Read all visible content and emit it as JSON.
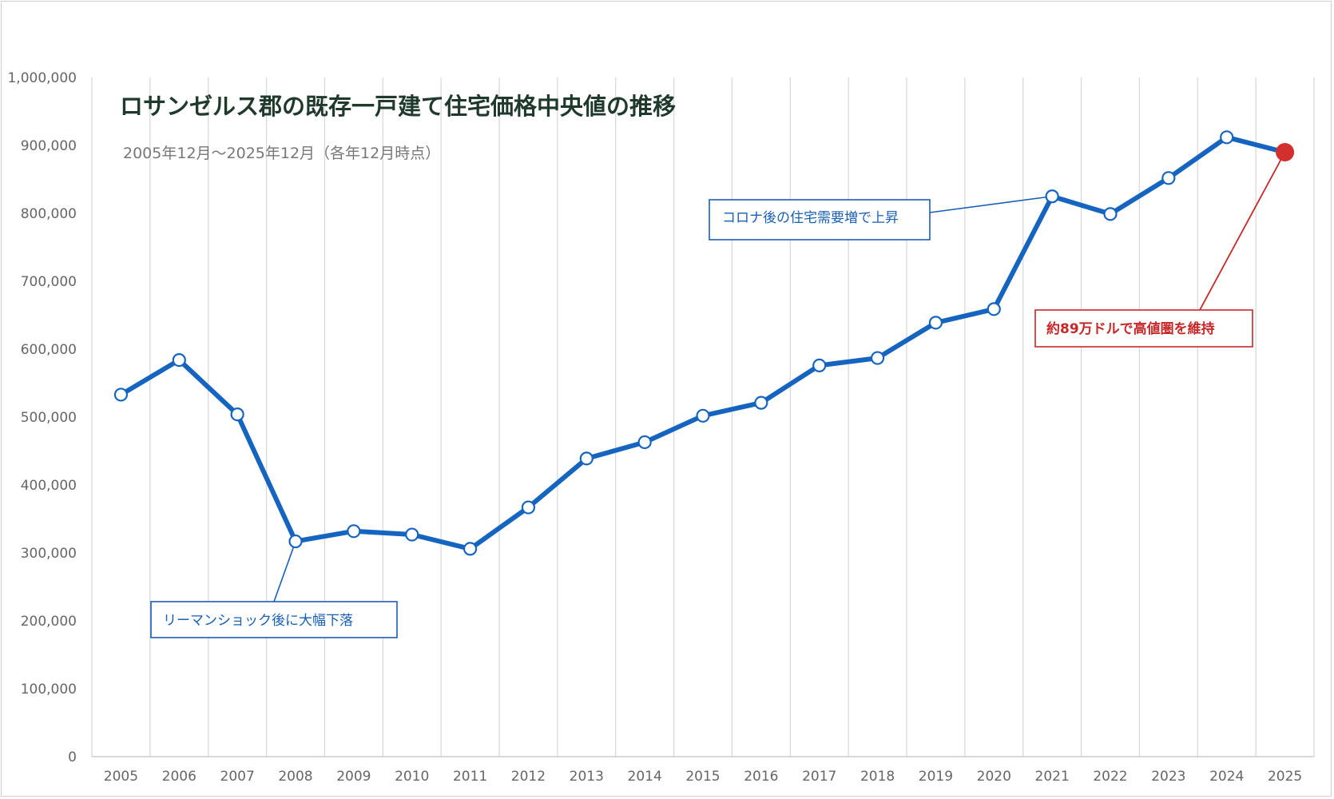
{
  "chart_data": {
    "type": "line",
    "title": "ロサンゼルス郡の既存一戸建て住宅価格中央値の推移",
    "subtitle": "2005年12月〜2025年12月（各年12月時点）",
    "xlabel": "",
    "ylabel": "",
    "categories": [
      "2005",
      "2006",
      "2007",
      "2008",
      "2009",
      "2010",
      "2011",
      "2012",
      "2013",
      "2014",
      "2015",
      "2016",
      "2017",
      "2018",
      "2019",
      "2020",
      "2021",
      "2022",
      "2023",
      "2024",
      "2025"
    ],
    "series": [
      {
        "values": [
          533000,
          584000,
          504000,
          317000,
          332000,
          327000,
          306000,
          367000,
          439000,
          463000,
          502000,
          521000,
          576000,
          587000,
          639000,
          659000,
          825000,
          799000,
          852000,
          912000,
          890000
        ]
      }
    ],
    "ylim": [
      0,
      1000000
    ],
    "yticks": [
      "0",
      "100,000",
      "200,000",
      "300,000",
      "400,000",
      "500,000",
      "600,000",
      "700,000",
      "800,000",
      "900,000",
      "1,000,000"
    ],
    "grid": "vertical",
    "legend": "none",
    "colors": {
      "line": "#1565c0",
      "highlight": "#d32f2f",
      "annotation_blue": "#1a5fb4",
      "annotation_red": "#c62828",
      "title": "#1f3a2c"
    },
    "annotations": [
      {
        "text": "リーマンショック後に大幅下落",
        "point_index": 3,
        "color": "#1a5fb4"
      },
      {
        "text": "コロナ後の住宅需要増で上昇",
        "point_index": 16,
        "color": "#1a5fb4"
      },
      {
        "text": "約89万ドルで高値圏を維持",
        "point_index": 20,
        "color": "#c62828"
      }
    ]
  }
}
